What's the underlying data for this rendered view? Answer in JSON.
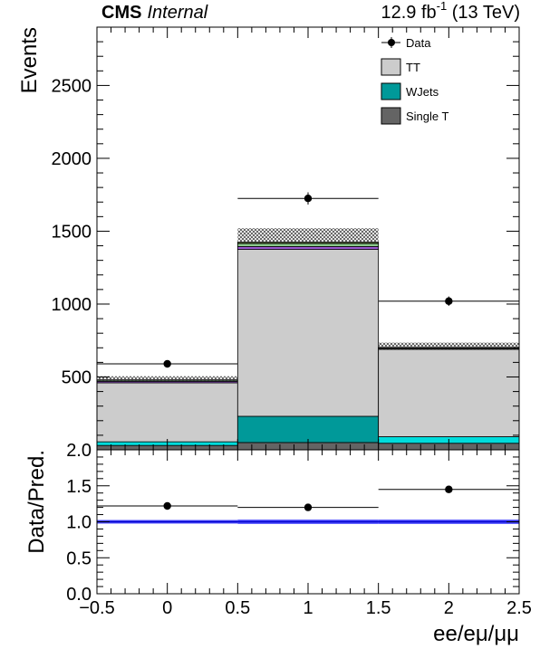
{
  "header": {
    "experiment": "CMS",
    "status": "Internal",
    "lumi_prefix": "12.9 fb",
    "lumi_exp": "-1",
    "lumi_suffix": " (13 TeV)"
  },
  "chart_data": [
    {
      "type": "bar",
      "subtype": "stacked-histogram",
      "x_edges": [
        -0.5,
        0.5,
        1.5,
        2.5
      ],
      "xlim": [
        -0.5,
        2.5
      ],
      "ylim": [
        0,
        2900
      ],
      "ylabel": "Events",
      "yticks": [
        500,
        1000,
        1500,
        2000,
        2500
      ],
      "legend_position": "top-right",
      "stack": [
        {
          "name": "",
          "color": "#646464",
          "values": [
            30,
            50,
            45
          ]
        },
        {
          "name": "",
          "color": "#00dcdc",
          "values": [
            25,
            0,
            45
          ]
        },
        {
          "name": "WJets",
          "color": "#009999",
          "values": [
            0,
            180,
            0
          ]
        },
        {
          "name": "TT",
          "color": "#cccccc",
          "values": [
            405,
            1145,
            600
          ]
        },
        {
          "name": "",
          "color": "#9b59d0",
          "values": [
            10,
            20,
            5
          ]
        },
        {
          "name": "",
          "color": "#8fcf8f",
          "values": [
            8,
            20,
            5
          ]
        },
        {
          "name": "",
          "color": "#556b2f",
          "values": [
            2,
            10,
            2
          ]
        }
      ],
      "uncertainty": {
        "up": [
          505,
          1520,
          735
        ],
        "down": [
          475,
          1420,
          690
        ]
      },
      "data": {
        "name": "Data",
        "x": [
          0,
          1,
          2
        ],
        "y": [
          590,
          1725,
          1020
        ],
        "yerr": [
          24,
          42,
          32
        ]
      },
      "legend": [
        {
          "label": "Data",
          "style": "marker"
        },
        {
          "label": "TT",
          "color": "#cccccc"
        },
        {
          "label": "WJets",
          "color": "#009999"
        },
        {
          "label": "Single T",
          "color": "#646464"
        }
      ]
    },
    {
      "type": "scatter",
      "subtype": "ratio",
      "ylabel": "Data/Pred.",
      "xlabel": "ee/eμ/μμ",
      "xlim": [
        -0.5,
        2.5
      ],
      "ylim": [
        0,
        2.0
      ],
      "yticks": [
        "0.0",
        "0.5",
        "1.0",
        "1.5",
        "2.0"
      ],
      "xticks": [
        "−0.5",
        "0",
        "0.5",
        "1",
        "1.5",
        "2",
        "2.5"
      ],
      "x": [
        0,
        1,
        2
      ],
      "y": [
        1.22,
        1.2,
        1.45
      ],
      "yerr": [
        0.03,
        0.03,
        0.03
      ],
      "x_edges": [
        -0.5,
        0.5,
        1.5,
        2.5
      ],
      "band": {
        "color": "#3333ff",
        "half_width": [
          0.025,
          0.03,
          0.03
        ]
      },
      "reference": 1.0
    }
  ]
}
